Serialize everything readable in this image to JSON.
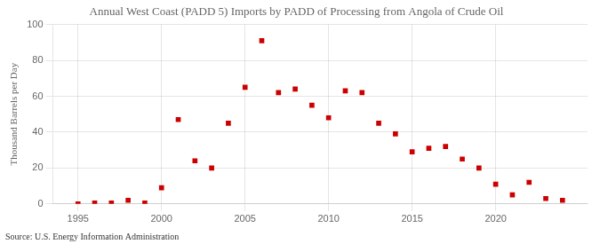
{
  "chart_data": {
    "type": "scatter",
    "title": "Annual West Coast (PADD 5) Imports by PADD of Processing from Angola of Crude Oil",
    "ylabel": "Thousand Barrels per Day",
    "source": "Source: U.S. Energy Information Administration",
    "x": [
      1995,
      1996,
      1997,
      1998,
      1999,
      2000,
      2001,
      2002,
      2003,
      2004,
      2005,
      2006,
      2007,
      2008,
      2009,
      2010,
      2011,
      2012,
      2013,
      2014,
      2015,
      2016,
      2017,
      2018,
      2019,
      2020,
      2021,
      2022,
      2023,
      2024
    ],
    "values": [
      0.0,
      0.5,
      0.5,
      2.0,
      0.5,
      9.0,
      47.0,
      24.0,
      20.0,
      45.0,
      65.0,
      91.0,
      62.0,
      64.0,
      55.0,
      48.0,
      63.0,
      62.0,
      45.0,
      39.0,
      29.0,
      31.0,
      32.0,
      25.0,
      20.0,
      11.0,
      5.0,
      12.0,
      3.0,
      2.0
    ],
    "color": "#cc0000",
    "marker": "square",
    "xlim": [
      1993.5,
      2025.5
    ],
    "xticks": [
      1995,
      2000,
      2005,
      2010,
      2015,
      2020
    ],
    "ylim": [
      0,
      100
    ],
    "yticks": [
      0,
      20,
      40,
      60,
      80,
      100
    ],
    "grid": true
  }
}
